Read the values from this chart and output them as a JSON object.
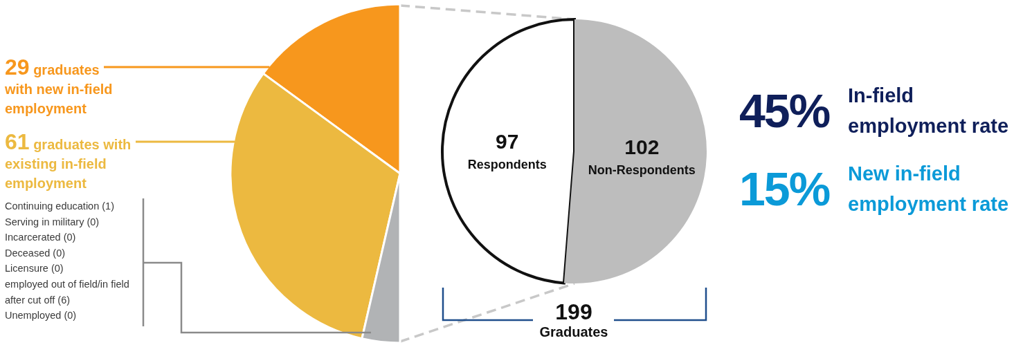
{
  "chart_data": [
    {
      "type": "pie",
      "categories": [
        "graduates with new in-field employment",
        "graduates with existing in-field employment",
        null
      ],
      "values": [
        29,
        61,
        7
      ],
      "colors": [
        "#f7971d",
        "#ecb940",
        "#b1b3b5"
      ],
      "value_labels": [
        "29",
        "61",
        null
      ],
      "annotations": [
        "Continuing education (1)",
        "Serving in military (0)",
        "Incarcerated (0)",
        "Deceased (0)",
        "Licensure (0)",
        "employed out of field/in field after cut off (6)",
        "Unemployed (0)"
      ]
    },
    {
      "type": "pie",
      "categories": [
        "Respondents",
        "Non-Respondents"
      ],
      "values": [
        97,
        102
      ],
      "colors": [
        "#ffffff",
        "#bdbdbd"
      ],
      "data_labels": true,
      "annotations": [
        "199 Graduates"
      ]
    },
    {
      "type": "other",
      "categories": [
        "In-field employment rate",
        "New in-field employment rate"
      ],
      "value_labels": [
        "45%",
        "15%"
      ],
      "colors": [
        "#0f1f5a",
        "#0b9ad8"
      ]
    }
  ]
}
